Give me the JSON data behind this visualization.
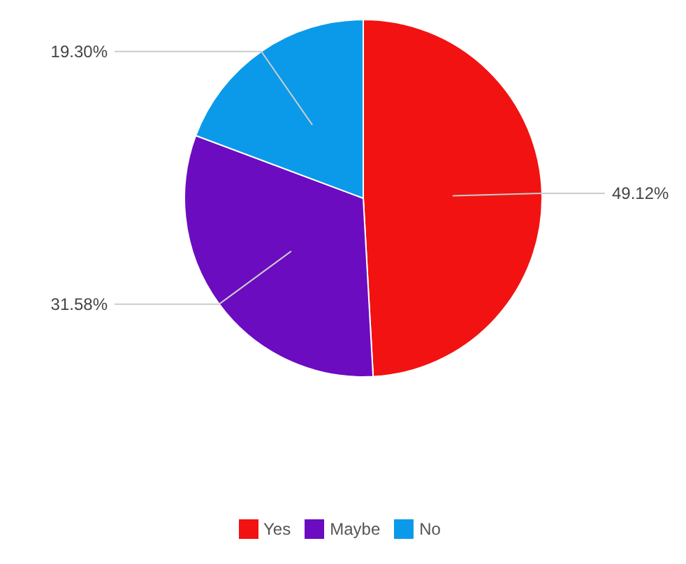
{
  "chart_data": {
    "type": "pie",
    "categories": [
      "Yes",
      "Maybe",
      "No"
    ],
    "values": [
      49.12,
      31.58,
      19.3
    ],
    "value_labels": [
      "49.12%",
      "31.58%",
      "19.30%"
    ],
    "colors": [
      "#f21212",
      "#6b0cc0",
      "#0b9ae9"
    ],
    "legend": "bottom"
  }
}
